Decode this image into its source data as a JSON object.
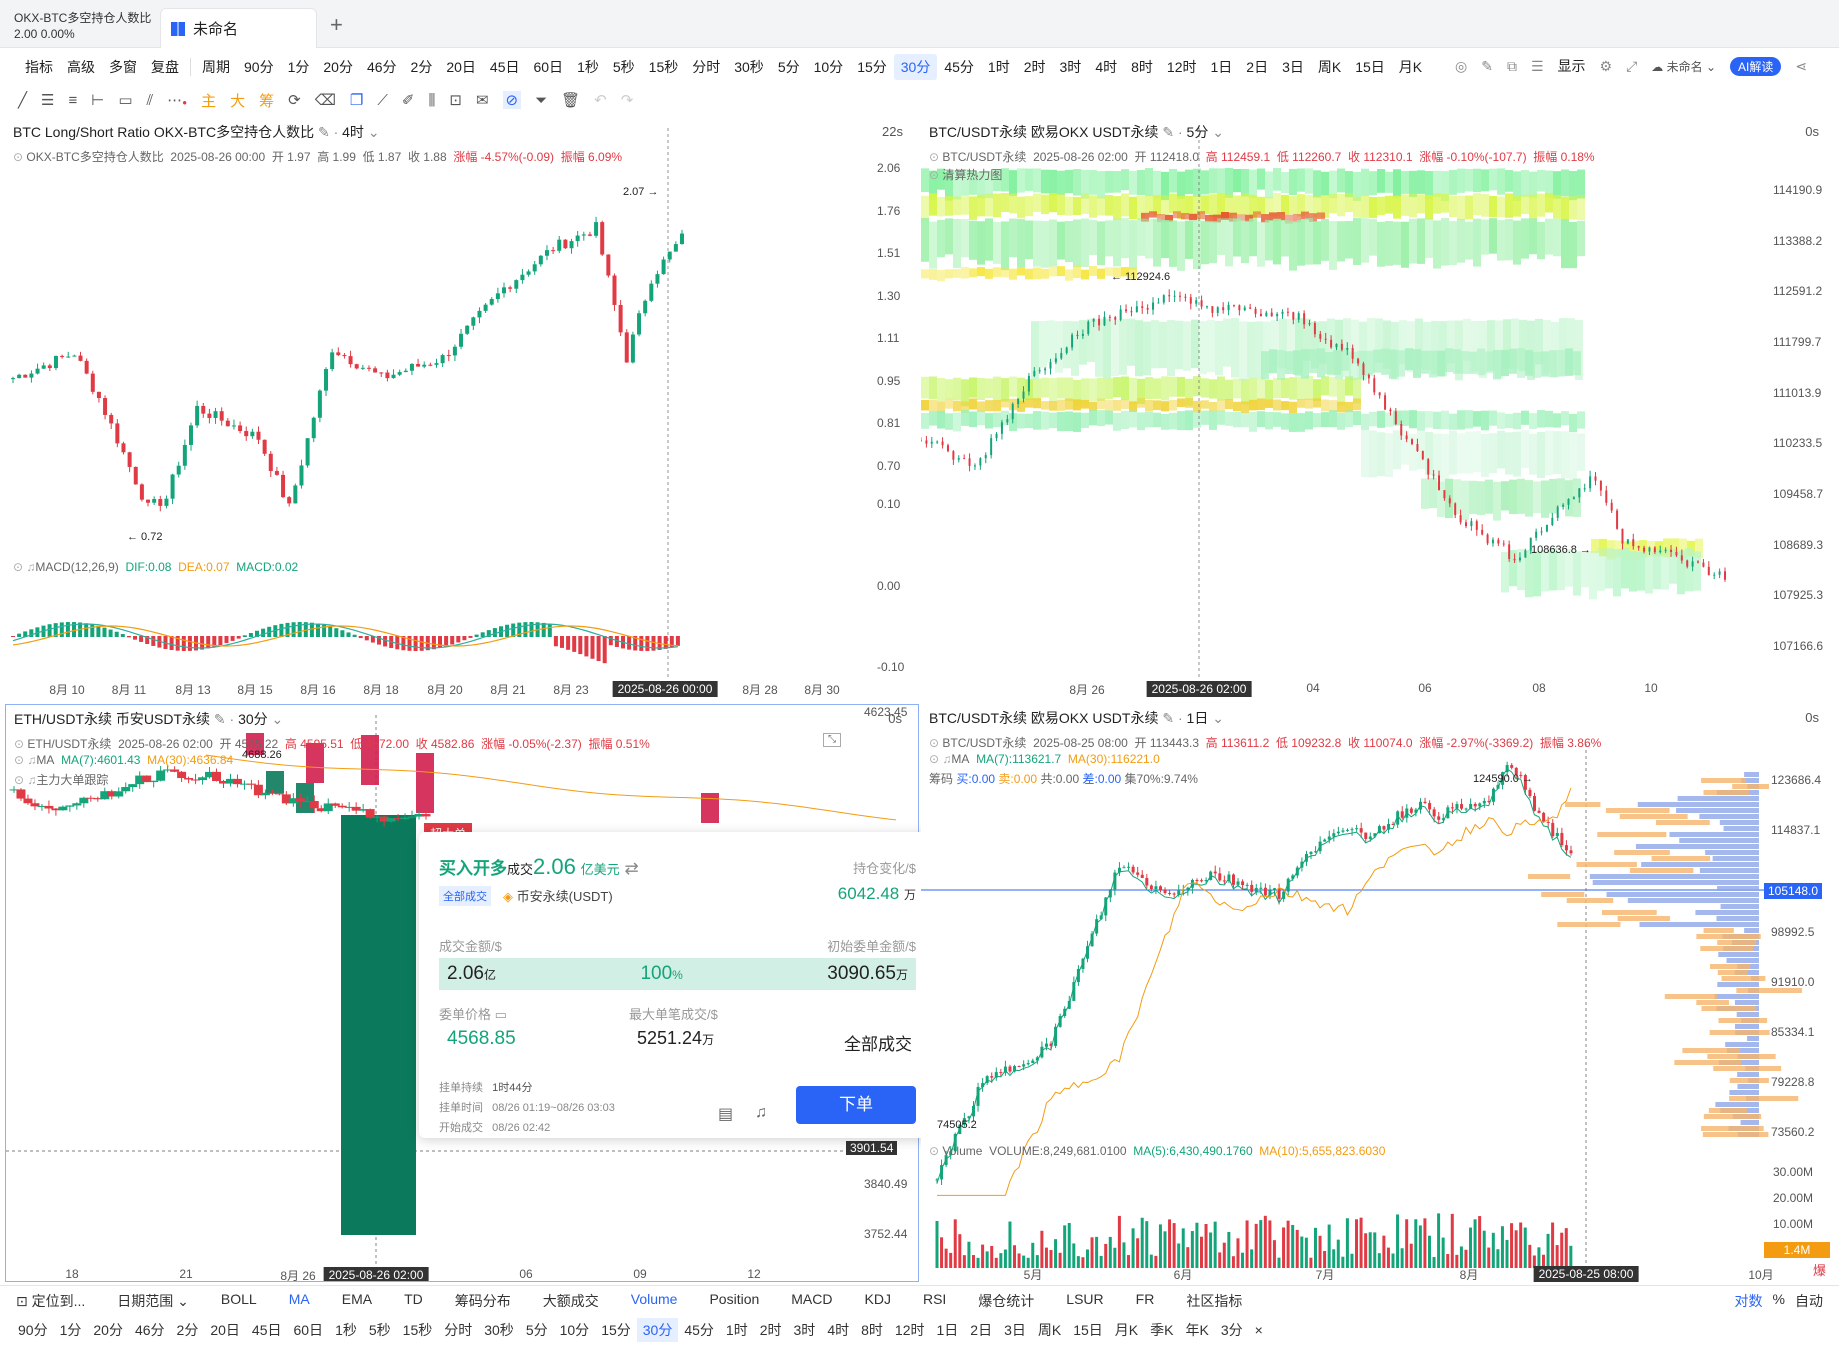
{
  "tabbar": {
    "left_title": "OKX-BTC多空持仓人数比",
    "left_value": "2.00 0.00%",
    "active_tab": "未命名",
    "plus": "+"
  },
  "toolbar1": [
    "指标",
    "高级",
    "多窗",
    "复盘",
    "",
    "周期",
    "90分",
    "1分",
    "20分",
    "46分",
    "2分",
    "20日",
    "45日",
    "60日",
    "1秒",
    "5秒",
    "15秒",
    "分时",
    "30秒",
    "5分",
    "10分",
    "15分",
    "30分",
    "45分",
    "1时",
    "2时",
    "3时",
    "4时",
    "8时",
    "12时",
    "1日",
    "2日",
    "3日",
    "周K",
    "15日",
    "月K"
  ],
  "toolbar1_selected": "30分",
  "toolbar1_right": {
    "display": "显示",
    "layout_name": "未命名",
    "ai": "AI解读"
  },
  "toolbar2": [
    "主",
    "大",
    "筹"
  ],
  "panel_tl": {
    "title": "BTC Long/Short Ratio OKX-BTC多空持仓人数比",
    "interval": "4时",
    "timer": "22s",
    "info": {
      "name": "OKX-BTC多空持仓人数比",
      "date": "2025-08-26 00:00",
      "open": "开 1.97",
      "high": "高 1.99",
      "low": "低 1.87",
      "close": "收 1.88",
      "chg": "涨幅 -4.57%(-0.09)",
      "amp": "振幅 6.09%"
    },
    "macd": {
      "label": "MACD(12,26,9)",
      "dif": "DIF:0.08",
      "dea": "DEA:0.07",
      "macd": "MACD:0.02"
    },
    "yaxis": [
      "2.06",
      "1.76",
      "1.51",
      "1.30",
      "1.11",
      "0.95",
      "0.81",
      "0.70"
    ],
    "macd_axis": [
      "0.10",
      "0.00",
      "-0.10"
    ],
    "xaxis": [
      "8月 10",
      "8月 11",
      "8月 13",
      "8月 15",
      "8月 16",
      "8月 18",
      "8月 20",
      "8月 21",
      "8月 23",
      "2025-08-26 00:00",
      "8月 28",
      "8月 30"
    ],
    "high_mark": "2.07",
    "low_mark": "0.72"
  },
  "panel_tr": {
    "title": "BTC/USDT永续 欧易OKX USDT永续",
    "interval": "5分",
    "timer": "0s",
    "info": {
      "name": "BTC/USDT永续",
      "date": "2025-08-26 02:00",
      "open": "开 112418.0",
      "high": "高 112459.1",
      "low": "低 112260.7",
      "close": "收 112310.1",
      "chg": "涨幅 -0.10%(-107.7)",
      "amp": "振幅 0.18%"
    },
    "heat_label": "清算热力图",
    "yaxis": [
      "114190.9",
      "113388.2",
      "112591.2",
      "111799.7",
      "111013.9",
      "110233.5",
      "109458.7",
      "108689.3",
      "107925.3",
      "107166.6"
    ],
    "xaxis": [
      "8月 26",
      "2025-08-26 02:00",
      "04",
      "06",
      "08",
      "10"
    ],
    "high_mark": "112924.6",
    "low_mark": "108636.8"
  },
  "panel_bl": {
    "title": "ETH/USDT永续 币安USDT永续",
    "interval": "30分",
    "timer": "0s",
    "info": {
      "name": "ETH/USDT永续",
      "date": "2025-08-26 02:00",
      "open": "开 4585.22",
      "high": "高 4595.51",
      "low": "低 4572.00",
      "close": "收 4582.86",
      "chg": "涨幅 -0.05%(-2.37)",
      "amp": "振幅 0.51%"
    },
    "ma": {
      "label": "MA",
      "ma7": "MA(7):4601.43",
      "ma30": "MA(30):4636.84"
    },
    "big_order": "主力大单跟踪",
    "mark": "4688.26",
    "yaxis": [
      "4623.45",
      "3840.49",
      "3752.44"
    ],
    "cursor_price": "3901.54",
    "xaxis": [
      "18",
      "21",
      "8月 26",
      "2025-08-26 02:00",
      "06",
      "09",
      "12"
    ],
    "badge": "超大单"
  },
  "popup": {
    "headline": "买入开多",
    "deal": "成交",
    "amount": "2.06",
    "unit": "亿美元",
    "pos_change_label": "持仓变化/$",
    "tag": "全部成交",
    "exchange": "币安永续(USDT)",
    "pos_change": "6042.48",
    "pos_unit": "万",
    "deal_amt_label": "成交金额/$",
    "init_label": "初始委单金额/$",
    "deal_amt": "2.06",
    "deal_amt_unit": "亿",
    "pct": "100",
    "pct_unit": "%",
    "init_amt": "3090.65",
    "init_unit": "万",
    "price_label": "委单价格",
    "max_label": "最大单笔成交/$",
    "price": "4568.85",
    "max": "5251.24",
    "max_unit": "万",
    "status": "全部成交",
    "dur_label": "挂单持续",
    "dur": "1时44分",
    "time_label": "挂单时间",
    "time": "08/26 01:19~08/26 03:03",
    "start_label": "开始成交",
    "start": "08/26 02:42",
    "order_btn": "下单"
  },
  "panel_br": {
    "title": "BTC/USDT永续 欧易OKX USDT永续",
    "interval": "1日",
    "timer": "0s",
    "info": {
      "name": "BTC/USDT永续",
      "date": "2025-08-25 08:00",
      "open": "开 113443.3",
      "high": "高 113611.2",
      "low": "低 109232.8",
      "close": "收 110074.0",
      "chg": "涨幅 -2.97%(-3369.2)",
      "amp": "振幅 3.86%"
    },
    "ma": {
      "label": "MA",
      "ma7": "MA(7):113621.7",
      "ma30": "MA(30):116221.0"
    },
    "chip": {
      "label": "筹码",
      "buy": "买:0.00",
      "sell": "卖:0.00",
      "total": "共:0.00",
      "diff": "差:0.00",
      "conc": "集70%:9.74%"
    },
    "vol": {
      "label": "Volume",
      "vol": "VOLUME:8,249,681.0100",
      "ma5": "MA(5):6,430,490.1760",
      "ma10": "MA(10):5,655,823.6030"
    },
    "yaxis": [
      "123686.4",
      "114837.1",
      "98992.5",
      "91910.0",
      "85334.1",
      "79228.8",
      "73560.2"
    ],
    "price_tag": "105148.0",
    "vol_axis": [
      "30.00M",
      "20.00M",
      "10.00M"
    ],
    "vol_tag": "1.4M",
    "xaxis": [
      "5月",
      "6月",
      "7月",
      "8月",
      "2025-08-25 08:00",
      "10月"
    ],
    "high_mark": "124590.0",
    "low_mark": "74505.2",
    "right_word": "爆"
  },
  "bottom1": {
    "locate": "定位到...",
    "range": "日期范围",
    "items": [
      "BOLL",
      "MA",
      "EMA",
      "TD",
      "筹码分布",
      "大额成交",
      "Volume",
      "Position",
      "MACD",
      "KDJ",
      "RSI",
      "爆仓统计",
      "LSUR",
      "FR",
      "社区指标"
    ],
    "selected": [
      "MA",
      "Volume"
    ],
    "right": [
      "对数",
      "%",
      "自动"
    ]
  },
  "bottom2": {
    "items": [
      "90分",
      "1分",
      "20分",
      "46分",
      "2分",
      "20日",
      "45日",
      "60日",
      "1秒",
      "5秒",
      "15秒",
      "分时",
      "30秒",
      "5分",
      "10分",
      "15分",
      "30分",
      "45分",
      "1时",
      "2时",
      "3时",
      "4时",
      "8时",
      "12时",
      "1日",
      "2日",
      "3日",
      "周K",
      "15日",
      "月K",
      "季K",
      "年K",
      "3分"
    ],
    "selected": "30分",
    "close": "×"
  },
  "colors": {
    "up": "#14a47a",
    "down": "#e03a45",
    "accent": "#2a64f6",
    "ma30": "#f39c12"
  }
}
